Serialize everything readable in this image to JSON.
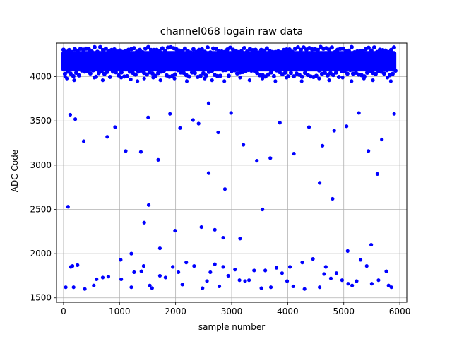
{
  "chart_data": {
    "type": "scatter",
    "title": "channel068 logain raw data",
    "xlabel": "sample number",
    "ylabel": "ADC Code",
    "xlim": [
      -125,
      6125
    ],
    "ylim": [
      1450,
      4380
    ],
    "xticks": [
      0,
      1000,
      2000,
      3000,
      4000,
      5000,
      6000
    ],
    "yticks": [
      1500,
      2000,
      2500,
      3000,
      3500,
      4000
    ],
    "grid": true,
    "marker_color": "#0000ff",
    "band": {
      "x_range": [
        0,
        5900
      ],
      "y_range": [
        4060,
        4290
      ],
      "description_values": "dense band of samples between ~4060 and ~4290"
    },
    "series": [
      {
        "x": [
          30,
          60,
          190,
          550,
          700,
          1030,
          1200,
          1320,
          1440,
          1600,
          1730,
          1980,
          2200,
          2520,
          2650,
          2870,
          3150,
          3320,
          3550,
          3780,
          3980,
          4250,
          4560,
          4740,
          4980,
          5140,
          5360,
          5520,
          5780,
          5840,
          120,
          210,
          360,
          780,
          920,
          1110,
          1380,
          1510,
          1690,
          1900,
          2080,
          2310,
          2410,
          2590,
          2760,
          2990,
          3210,
          3450,
          3690,
          3860,
          4110,
          4380,
          4620,
          4830,
          5050,
          5270,
          5440,
          5680,
          5900,
          80,
          40,
          130,
          180,
          250,
          540,
          700,
          1030,
          1210,
          1430,
          1540,
          1720,
          2050,
          2190,
          2480,
          2560,
          2700,
          2850,
          3140,
          3240,
          3400,
          3530,
          3800,
          3990,
          4100,
          4260,
          4570,
          4680,
          4870,
          4970,
          5150,
          5300,
          5500,
          5760,
          5850,
          160,
          380,
          590,
          800,
          1020,
          1260,
          1390,
          1580,
          1820,
          1950,
          2120,
          2330,
          2620,
          2780,
          2940,
          3060,
          3310,
          3600,
          3700,
          3900,
          4040,
          4300,
          4450,
          4650,
          4770,
          5080,
          5230,
          5410,
          5620,
          5800
        ],
        "y": [
          4000,
          3980,
          3960,
          3990,
          3960,
          3990,
          3970,
          3950,
          3980,
          3990,
          3960,
          3980,
          3950,
          3980,
          3960,
          3950,
          3990,
          3960,
          3980,
          3950,
          3990,
          3950,
          3980,
          3960,
          3990,
          3950,
          3980,
          3960,
          3990,
          3950,
          3570,
          3520,
          3270,
          3320,
          3430,
          3160,
          3150,
          3540,
          3060,
          3580,
          3420,
          3510,
          3470,
          3700,
          3370,
          3590,
          3230,
          3050,
          3080,
          3480,
          3130,
          3430,
          3220,
          3390,
          3440,
          3590,
          3160,
          3290,
          3580,
          2530,
          1620,
          1850,
          1620,
          1870,
          1640,
          1730,
          1710,
          1620,
          1860,
          1640,
          1750,
          1790,
          1900,
          1610,
          1690,
          1880,
          1850,
          1700,
          1690,
          1810,
          1610,
          1840,
          1690,
          1630,
          1900,
          1620,
          1850,
          1780,
          1700,
          1640,
          1930,
          1660,
          1800,
          1620,
          1860,
          1600,
          1710,
          1740,
          1930,
          1790,
          1800,
          1610,
          1730,
          1850,
          1650,
          1860,
          1790,
          1630,
          1750,
          1820,
          1700,
          1810,
          1620,
          1780,
          1850,
          1600,
          1940,
          1770,
          1720,
          1660,
          1690,
          1860,
          1700,
          1640
        ]
      },
      {
        "x": [
          1520,
          1440,
          1990,
          2460,
          2700,
          2850,
          3150,
          1720,
          1210,
          5490,
          2590,
          4570,
          4800,
          5600,
          3550,
          5070,
          2880
        ],
        "y": [
          2550,
          2350,
          2260,
          2300,
          2270,
          2180,
          2170,
          2060,
          2000,
          2100,
          2910,
          2800,
          2620,
          2900,
          2500,
          2030,
          2730
        ]
      }
    ]
  }
}
